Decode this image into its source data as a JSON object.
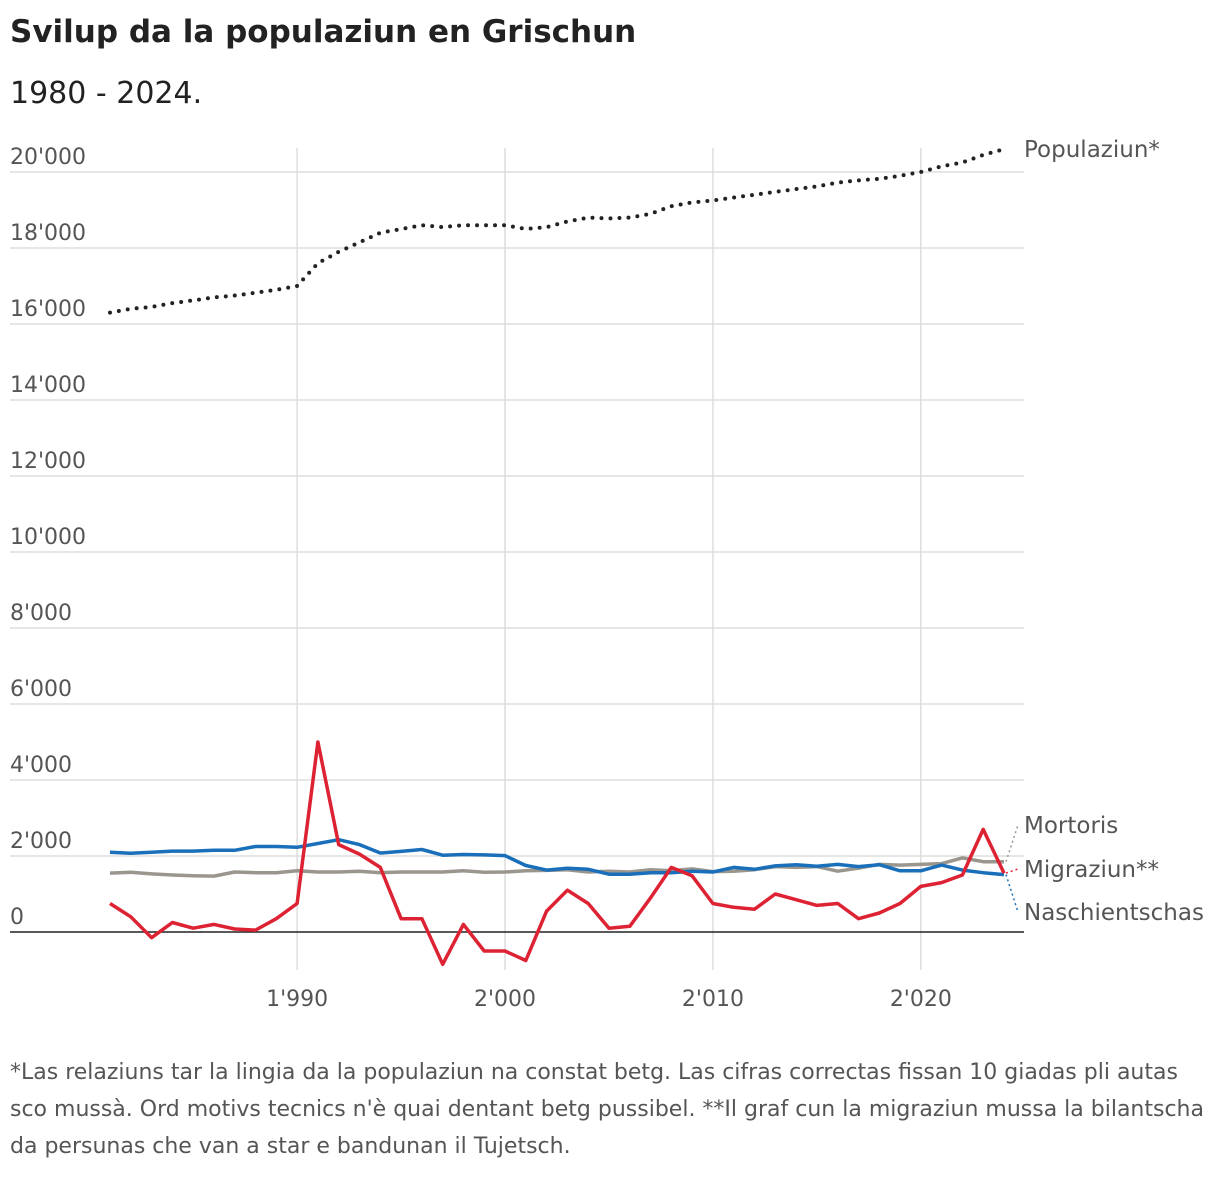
{
  "title": "Svilup da la populaziun en Grischun",
  "subtitle": "1980 - 2024.",
  "footnote": "*Las relaziuns tar la lingia da la populaziun na constat betg. Las cifras correctas fissan 10 giadas pli autas sco mussà. Ord motivs tecnics n'è quai dentant betg pussibel. **Il graf cun la migraziun mussa la bilantscha da persunas che van a star e bandunan il Tujetsch.",
  "chart_data": {
    "type": "line",
    "title": "Svilup da la populaziun en Grischun",
    "subtitle": "1980 - 2024.",
    "xlabel": "",
    "ylabel": "",
    "xlim": [
      1981,
      2025
    ],
    "ylim": [
      -1000,
      20500
    ],
    "grid": true,
    "x_ticks": [
      1990,
      2000,
      2010,
      2020
    ],
    "x_tick_labels": [
      "1'990",
      "2'000",
      "2'010",
      "2'020"
    ],
    "y_ticks": [
      0,
      2000,
      4000,
      6000,
      8000,
      10000,
      12000,
      14000,
      16000,
      18000,
      20000
    ],
    "y_tick_labels": [
      "0",
      "2'000",
      "4'000",
      "6'000",
      "8'000",
      "10'000",
      "12'000",
      "14'000",
      "16'000",
      "18'000",
      "20'000"
    ],
    "x": [
      1981,
      1982,
      1983,
      1984,
      1985,
      1986,
      1987,
      1988,
      1989,
      1990,
      1991,
      1992,
      1993,
      1994,
      1995,
      1996,
      1997,
      1998,
      1999,
      2000,
      2001,
      2002,
      2003,
      2004,
      2005,
      2006,
      2007,
      2008,
      2009,
      2010,
      2011,
      2012,
      2013,
      2014,
      2015,
      2016,
      2017,
      2018,
      2019,
      2020,
      2021,
      2022,
      2023,
      2024
    ],
    "series": [
      {
        "name": "Populaziun*",
        "color": "#222222",
        "style": "dotted",
        "values": [
          16300,
          16400,
          16450,
          16550,
          16620,
          16700,
          16750,
          16820,
          16900,
          17000,
          17600,
          17900,
          18150,
          18400,
          18500,
          18600,
          18550,
          18600,
          18600,
          18600,
          18500,
          18550,
          18700,
          18800,
          18780,
          18800,
          18900,
          19100,
          19200,
          19250,
          19330,
          19400,
          19480,
          19550,
          19620,
          19720,
          19780,
          19820,
          19900,
          20000,
          20150,
          20250,
          20450,
          20600
        ]
      },
      {
        "name": "Mortoris",
        "color": "#9a968e",
        "style": "solid",
        "values": [
          1550,
          1570,
          1530,
          1500,
          1480,
          1470,
          1580,
          1560,
          1560,
          1610,
          1580,
          1580,
          1600,
          1560,
          1580,
          1580,
          1580,
          1610,
          1570,
          1580,
          1610,
          1620,
          1640,
          1580,
          1600,
          1580,
          1640,
          1610,
          1660,
          1590,
          1600,
          1640,
          1720,
          1700,
          1720,
          1600,
          1680,
          1780,
          1760,
          1780,
          1800,
          1950,
          1850,
          1850
        ]
      },
      {
        "name": "Migraziun**",
        "color": "#dd2233",
        "style": "solid",
        "values": [
          750,
          400,
          -150,
          250,
          100,
          200,
          80,
          50,
          350,
          750,
          5000,
          2300,
          2050,
          1700,
          350,
          350,
          -850,
          200,
          -500,
          -500,
          -750,
          550,
          1100,
          750,
          100,
          150,
          900,
          1700,
          1480,
          750,
          650,
          600,
          1000,
          850,
          700,
          750,
          350,
          500,
          750,
          1200,
          1300,
          1500,
          2700,
          1550
        ]
      },
      {
        "name": "Naschientschas",
        "color": "#1a6fba",
        "style": "solid",
        "values": [
          2100,
          2070,
          2100,
          2130,
          2130,
          2150,
          2150,
          2250,
          2250,
          2230,
          2330,
          2430,
          2300,
          2080,
          2120,
          2170,
          2020,
          2040,
          2030,
          2010,
          1750,
          1630,
          1680,
          1650,
          1520,
          1520,
          1560,
          1560,
          1600,
          1580,
          1700,
          1650,
          1740,
          1770,
          1730,
          1780,
          1720,
          1770,
          1610,
          1610,
          1760,
          1630,
          1560,
          1510
        ]
      }
    ],
    "labels": [
      {
        "series": "Populaziun*",
        "text": "Populaziun*"
      },
      {
        "series": "Mortoris",
        "text": "Mortoris"
      },
      {
        "series": "Migraziun**",
        "text": "Migraziun**"
      },
      {
        "series": "Naschientschas",
        "text": "Naschientschas"
      }
    ]
  }
}
